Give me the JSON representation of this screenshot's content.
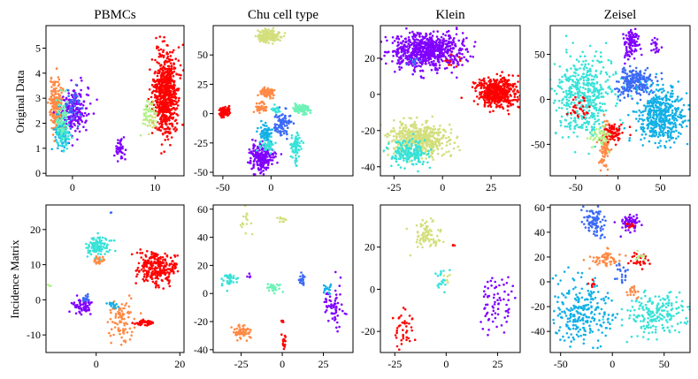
{
  "figure": {
    "row_labels": [
      "Original Data",
      "Incidence Matrix"
    ],
    "palette": {
      "violet": "#8000ff",
      "royal_blue": "#3b6af5",
      "sky_blue": "#13b0e6",
      "cyan": "#38e2d8",
      "aquamarine": "#6ef2b7",
      "light_green": "#b4f28a",
      "khaki": "#d3df7d",
      "orange": "#ff8a46",
      "red": "#ff0000"
    }
  },
  "chart_data": [
    {
      "type": "scatter",
      "title": "PBMCs",
      "ylabel": "Original Data",
      "xlim": [
        -3.2,
        13.5
      ],
      "ylim": [
        -0.1,
        5.9
      ],
      "xticks": [
        {
          "v": 0,
          "label": "0"
        },
        {
          "v": 10,
          "label": "10"
        }
      ],
      "yticks": [
        {
          "v": 0,
          "label": "0"
        },
        {
          "v": 1,
          "label": "1"
        },
        {
          "v": 2,
          "label": "2"
        },
        {
          "v": 3,
          "label": "3"
        },
        {
          "v": 4,
          "label": "4"
        },
        {
          "v": 5,
          "label": "5"
        }
      ],
      "clusters": [
        {
          "color": "orange",
          "cx": -1.9,
          "cy": 2.7,
          "sx": 0.4,
          "sy": 0.55,
          "n": 220
        },
        {
          "color": "violet",
          "cx": 0.2,
          "cy": 2.5,
          "sx": 0.8,
          "sy": 0.45,
          "n": 200
        },
        {
          "color": "sky_blue",
          "cx": -1.4,
          "cy": 1.7,
          "sx": 0.45,
          "sy": 0.35,
          "n": 90
        },
        {
          "color": "cyan",
          "cx": -1.1,
          "cy": 1.5,
          "sx": 0.4,
          "sy": 0.3,
          "n": 60
        },
        {
          "color": "aquamarine",
          "cx": -1.3,
          "cy": 2.3,
          "sx": 0.4,
          "sy": 0.4,
          "n": 60
        },
        {
          "color": "royal_blue",
          "cx": 0.2,
          "cy": 2.7,
          "sx": 0.6,
          "sy": 0.4,
          "n": 40
        },
        {
          "color": "violet",
          "cx": 5.8,
          "cy": 0.95,
          "sx": 0.3,
          "sy": 0.2,
          "n": 40
        },
        {
          "color": "red",
          "cx": 11.3,
          "cy": 3.2,
          "sx": 0.7,
          "sy": 0.85,
          "n": 650
        },
        {
          "color": "light_green",
          "cx": 9.3,
          "cy": 2.4,
          "sx": 0.4,
          "sy": 0.3,
          "n": 40
        },
        {
          "color": "khaki",
          "cx": 9.5,
          "cy": 2.2,
          "sx": 0.3,
          "sy": 0.25,
          "n": 20
        }
      ]
    },
    {
      "type": "scatter",
      "title": "Chu cell type",
      "ylabel": "",
      "xlim": [
        -60,
        85
      ],
      "ylim": [
        -53,
        75
      ],
      "xticks": [
        {
          "v": -50,
          "label": "-50"
        },
        {
          "v": 0,
          "label": "0"
        }
      ],
      "yticks": [
        {
          "v": -50,
          "label": "-50"
        },
        {
          "v": -25,
          "label": "-25"
        },
        {
          "v": 0,
          "label": "0"
        },
        {
          "v": 25,
          "label": "25"
        },
        {
          "v": 50,
          "label": "50"
        }
      ],
      "clusters": [
        {
          "color": "khaki",
          "cx": -2,
          "cy": 66,
          "sx": 6,
          "sy": 2.5,
          "n": 180
        },
        {
          "color": "red",
          "cx": -48,
          "cy": 2,
          "sx": 2.5,
          "sy": 2,
          "n": 90
        },
        {
          "color": "orange",
          "cx": -5,
          "cy": 18,
          "sx": 4,
          "sy": 2,
          "n": 90
        },
        {
          "color": "orange",
          "cx": -10,
          "cy": 5,
          "sx": 3,
          "sy": 2,
          "n": 50
        },
        {
          "color": "aquamarine",
          "cx": 32,
          "cy": 4,
          "sx": 4,
          "sy": 2,
          "n": 90
        },
        {
          "color": "royal_blue",
          "cx": 12,
          "cy": -8,
          "sx": 4,
          "sy": 6,
          "n": 90
        },
        {
          "color": "cyan",
          "cx": 26,
          "cy": -28,
          "sx": 2.5,
          "sy": 6,
          "n": 70
        },
        {
          "color": "violet",
          "cx": -10,
          "cy": -37,
          "sx": 6,
          "sy": 6,
          "n": 220
        },
        {
          "color": "sky_blue",
          "cx": -5,
          "cy": -17,
          "sx": 3,
          "sy": 4,
          "n": 70
        },
        {
          "color": "cyan",
          "cx": -3,
          "cy": -27,
          "sx": 4,
          "sy": 3,
          "n": 40
        },
        {
          "color": "cyan",
          "cx": 5,
          "cy": 3,
          "sx": 3,
          "sy": 2,
          "n": 20
        }
      ]
    },
    {
      "type": "scatter",
      "title": "Klein",
      "ylabel": "",
      "xlim": [
        -32,
        40
      ],
      "ylim": [
        -45,
        38
      ],
      "xticks": [
        {
          "v": -25,
          "label": "-25"
        },
        {
          "v": 0,
          "label": "0"
        },
        {
          "v": 25,
          "label": "25"
        }
      ],
      "yticks": [
        {
          "v": -40,
          "label": "-40"
        },
        {
          "v": -20,
          "label": "-20"
        },
        {
          "v": 0,
          "label": "0"
        },
        {
          "v": 20,
          "label": "20"
        }
      ],
      "clusters": [
        {
          "color": "violet",
          "cx": -8,
          "cy": 24,
          "sx": 9,
          "sy": 5,
          "n": 700
        },
        {
          "color": "red",
          "cx": 28,
          "cy": 1,
          "sx": 5,
          "sy": 4,
          "n": 500
        },
        {
          "color": "khaki",
          "cx": -12,
          "cy": -25,
          "sx": 8,
          "sy": 4.5,
          "n": 500
        },
        {
          "color": "cyan",
          "cx": -17,
          "cy": -33,
          "sx": 5,
          "sy": 3.5,
          "n": 180
        },
        {
          "color": "red",
          "cx": 5,
          "cy": 20,
          "sx": 2,
          "sy": 2,
          "n": 10
        },
        {
          "color": "royal_blue",
          "cx": -15,
          "cy": 18,
          "sx": 2,
          "sy": 2,
          "n": 10
        }
      ]
    },
    {
      "type": "scatter",
      "title": "Zeisel",
      "ylabel": "",
      "xlim": [
        -80,
        85
      ],
      "ylim": [
        -85,
        82
      ],
      "xticks": [
        {
          "v": -50,
          "label": "-50"
        },
        {
          "v": 0,
          "label": "0"
        },
        {
          "v": 50,
          "label": "50"
        }
      ],
      "yticks": [
        {
          "v": -50,
          "label": "-50"
        },
        {
          "v": 0,
          "label": "0"
        },
        {
          "v": 50,
          "label": "50"
        }
      ],
      "clusters": [
        {
          "color": "cyan",
          "cx": -40,
          "cy": 5,
          "sx": 18,
          "sy": 22,
          "n": 450
        },
        {
          "color": "royal_blue",
          "cx": 20,
          "cy": 20,
          "sx": 10,
          "sy": 8,
          "n": 230
        },
        {
          "color": "violet",
          "cx": 15,
          "cy": 62,
          "sx": 5,
          "sy": 8,
          "n": 100
        },
        {
          "color": "sky_blue",
          "cx": 50,
          "cy": -18,
          "sx": 15,
          "sy": 15,
          "n": 480
        },
        {
          "color": "orange",
          "cx": -15,
          "cy": -52,
          "sx": 3,
          "sy": 12,
          "n": 90
        },
        {
          "color": "red",
          "cx": -5,
          "cy": -37,
          "sx": 7,
          "sy": 5,
          "n": 70
        },
        {
          "color": "light_green",
          "cx": -22,
          "cy": -40,
          "sx": 6,
          "sy": 5,
          "n": 50
        },
        {
          "color": "violet",
          "cx": 45,
          "cy": 60,
          "sx": 3,
          "sy": 5,
          "n": 20
        },
        {
          "color": "red",
          "cx": -45,
          "cy": -10,
          "sx": 6,
          "sy": 6,
          "n": 30
        }
      ]
    },
    {
      "type": "scatter",
      "title": "",
      "ylabel": "Incidence Matrix",
      "xlim": [
        -12,
        21
      ],
      "ylim": [
        -15,
        27
      ],
      "xticks": [
        {
          "v": 0,
          "label": "0"
        },
        {
          "v": 20,
          "label": "20"
        }
      ],
      "yticks": [
        {
          "v": -10,
          "label": "-10"
        },
        {
          "v": 0,
          "label": "0"
        },
        {
          "v": 10,
          "label": "10"
        },
        {
          "v": 20,
          "label": "20"
        }
      ],
      "clusters": [
        {
          "color": "cyan",
          "cx": 0.5,
          "cy": 15,
          "sx": 1.3,
          "sy": 1.5,
          "n": 110
        },
        {
          "color": "orange",
          "cx": 0.5,
          "cy": 11,
          "sx": 0.5,
          "sy": 0.6,
          "n": 25
        },
        {
          "color": "red",
          "cx": 14.5,
          "cy": 9,
          "sx": 2.3,
          "sy": 2.2,
          "n": 260
        },
        {
          "color": "violet",
          "cx": -3.5,
          "cy": -2,
          "sx": 1.2,
          "sy": 1,
          "n": 60
        },
        {
          "color": "royal_blue",
          "cx": -2.5,
          "cy": 0.5,
          "sx": 0.5,
          "sy": 0.5,
          "n": 15
        },
        {
          "color": "orange",
          "cx": 6,
          "cy": -6,
          "sx": 1.5,
          "sy": 3,
          "n": 90
        },
        {
          "color": "red",
          "cx": 11.5,
          "cy": -6.5,
          "sx": 1.2,
          "sy": 0.4,
          "n": 40
        },
        {
          "color": "sky_blue",
          "cx": 4,
          "cy": -1.5,
          "sx": 0.8,
          "sy": 0.5,
          "n": 15
        },
        {
          "color": "light_green",
          "cx": -11,
          "cy": 4,
          "sx": 0.3,
          "sy": 0.3,
          "n": 3
        },
        {
          "color": "royal_blue",
          "cx": 3.5,
          "cy": 25,
          "sx": 0.2,
          "sy": 0.2,
          "n": 2
        }
      ]
    },
    {
      "type": "scatter",
      "title": "",
      "ylabel": "",
      "xlim": [
        -42,
        43
      ],
      "ylim": [
        -42,
        63
      ],
      "xticks": [
        {
          "v": -25,
          "label": "-25"
        },
        {
          "v": 0,
          "label": "0"
        },
        {
          "v": 25,
          "label": "25"
        }
      ],
      "yticks": [
        {
          "v": -40,
          "label": "-40"
        },
        {
          "v": -20,
          "label": "-20"
        },
        {
          "v": 0,
          "label": "0"
        },
        {
          "v": 20,
          "label": "20"
        },
        {
          "v": 40,
          "label": "40"
        },
        {
          "v": 60,
          "label": "60"
        }
      ],
      "clusters": [
        {
          "color": "khaki",
          "cx": -23,
          "cy": 50,
          "sx": 3,
          "sy": 6,
          "n": 15
        },
        {
          "color": "khaki",
          "cx": 0,
          "cy": 53,
          "sx": 1.5,
          "sy": 1.2,
          "n": 10
        },
        {
          "color": "cyan",
          "cx": -32,
          "cy": 10,
          "sx": 2,
          "sy": 2.5,
          "n": 40
        },
        {
          "color": "orange",
          "cx": -25,
          "cy": -27,
          "sx": 3,
          "sy": 2.5,
          "n": 60
        },
        {
          "color": "aquamarine",
          "cx": -5,
          "cy": 4,
          "sx": 2.5,
          "sy": 1.5,
          "n": 30
        },
        {
          "color": "royal_blue",
          "cx": 12,
          "cy": 10,
          "sx": 1,
          "sy": 2,
          "n": 20
        },
        {
          "color": "violet",
          "cx": 31,
          "cy": -8,
          "sx": 3,
          "sy": 8,
          "n": 60
        },
        {
          "color": "sky_blue",
          "cx": 28,
          "cy": 3,
          "sx": 1.5,
          "sy": 2,
          "n": 15
        },
        {
          "color": "red",
          "cx": 1,
          "cy": -35,
          "sx": 0.8,
          "sy": 3,
          "n": 15
        },
        {
          "color": "red",
          "cx": 0,
          "cy": -20,
          "sx": 0.5,
          "sy": 0.5,
          "n": 5
        },
        {
          "color": "violet",
          "cx": -20,
          "cy": 12,
          "sx": 1,
          "sy": 1,
          "n": 5
        }
      ]
    },
    {
      "type": "scatter",
      "title": "",
      "ylabel": "",
      "xlim": [
        -32,
        36
      ],
      "ylim": [
        -30,
        40
      ],
      "xticks": [
        {
          "v": -25,
          "label": "-25"
        },
        {
          "v": 0,
          "label": "0"
        },
        {
          "v": 25,
          "label": "25"
        }
      ],
      "yticks": [
        {
          "v": -20,
          "label": "-20"
        },
        {
          "v": 0,
          "label": "0"
        },
        {
          "v": 20,
          "label": "20"
        }
      ],
      "clusters": [
        {
          "color": "khaki",
          "cx": -9,
          "cy": 26,
          "sx": 3.5,
          "sy": 3.5,
          "n": 80
        },
        {
          "color": "red",
          "cx": -21,
          "cy": -18,
          "sx": 3,
          "sy": 4.5,
          "n": 40
        },
        {
          "color": "violet",
          "cx": 24,
          "cy": -6,
          "sx": 4,
          "sy": 7,
          "n": 70
        },
        {
          "color": "cyan",
          "cx": -2,
          "cy": 3,
          "sx": 1.5,
          "sy": 3,
          "n": 20
        },
        {
          "color": "red",
          "cx": 4,
          "cy": 21,
          "sx": 0.5,
          "sy": 0.5,
          "n": 3
        },
        {
          "color": "khaki",
          "cx": 0,
          "cy": 6,
          "sx": 1,
          "sy": 1,
          "n": 5
        }
      ]
    },
    {
      "type": "scatter",
      "title": "",
      "ylabel": "",
      "xlim": [
        -60,
        75
      ],
      "ylim": [
        -57,
        62
      ],
      "xticks": [
        {
          "v": -50,
          "label": "-50"
        },
        {
          "v": 0,
          "label": "0"
        },
        {
          "v": 50,
          "label": "50"
        }
      ],
      "yticks": [
        {
          "v": -40,
          "label": "-40"
        },
        {
          "v": -20,
          "label": "-20"
        },
        {
          "v": 0,
          "label": "0"
        },
        {
          "v": 20,
          "label": "20"
        },
        {
          "v": 40,
          "label": "40"
        },
        {
          "v": 60,
          "label": "60"
        }
      ],
      "clusters": [
        {
          "color": "royal_blue",
          "cx": -18,
          "cy": 48,
          "sx": 5,
          "sy": 6,
          "n": 90
        },
        {
          "color": "violet",
          "cx": 17,
          "cy": 47,
          "sx": 5,
          "sy": 3,
          "n": 70
        },
        {
          "color": "red",
          "cx": 17,
          "cy": 45,
          "sx": 2,
          "sy": 1.5,
          "n": 10
        },
        {
          "color": "orange",
          "cx": -8,
          "cy": 18,
          "sx": 7,
          "sy": 3,
          "n": 60
        },
        {
          "color": "red",
          "cx": 25,
          "cy": 17,
          "sx": 6,
          "sy": 3,
          "n": 30
        },
        {
          "color": "light_green",
          "cx": 28,
          "cy": 20,
          "sx": 3,
          "sy": 2,
          "n": 10
        },
        {
          "color": "sky_blue",
          "cx": -30,
          "cy": -25,
          "sx": 14,
          "sy": 12,
          "n": 260
        },
        {
          "color": "cyan",
          "cx": 40,
          "cy": -25,
          "sx": 16,
          "sy": 8,
          "n": 200
        },
        {
          "color": "royal_blue",
          "cx": 10,
          "cy": 5,
          "sx": 3,
          "sy": 4,
          "n": 20
        },
        {
          "color": "orange",
          "cx": 20,
          "cy": -8,
          "sx": 3,
          "sy": 3,
          "n": 20
        },
        {
          "color": "red",
          "cx": -20,
          "cy": -2,
          "sx": 2,
          "sy": 2,
          "n": 8
        }
      ]
    }
  ]
}
